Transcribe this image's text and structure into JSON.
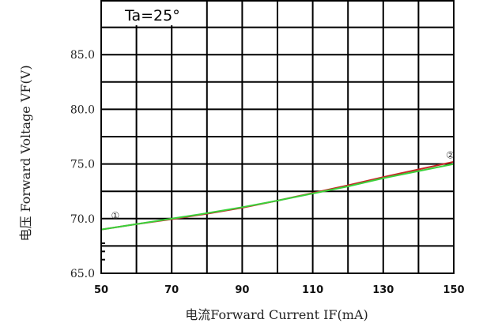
{
  "chart_data": {
    "type": "line",
    "annotation": "Ta=25°",
    "xlabel": "电流Forward Current IF(mA)",
    "ylabel": "电压 Forward Voltage VF(V)",
    "xlim": [
      50,
      150
    ],
    "ylim": [
      65.0,
      90.0
    ],
    "x_ticks": [
      50,
      70,
      90,
      110,
      130,
      150
    ],
    "x_tick_labels": [
      "50",
      "70",
      "90",
      "110",
      "130",
      "150"
    ],
    "y_ticks": [
      65.0,
      70.0,
      75.0,
      80.0,
      85.0
    ],
    "y_tick_labels": [
      "65.0",
      "70.0",
      "75.0",
      "80.0",
      "85.0"
    ],
    "grid": true,
    "point_markers": [
      {
        "label": "①",
        "x": 52,
        "y": 70.0
      },
      {
        "label": "②",
        "x": 147,
        "y": 75.5
      }
    ],
    "series": [
      {
        "color": "#c62828",
        "x": [
          50,
          60,
          70,
          80,
          90,
          100,
          110,
          120,
          130,
          140,
          150
        ],
        "y": [
          69.0,
          69.5,
          69.95,
          70.45,
          71.0,
          71.65,
          72.35,
          73.05,
          73.8,
          74.5,
          75.2
        ]
      },
      {
        "color": "#3ad13a",
        "x": [
          50,
          60,
          70,
          80,
          90,
          100,
          110,
          120,
          130,
          140,
          150
        ],
        "y": [
          69.0,
          69.5,
          70.0,
          70.5,
          71.05,
          71.65,
          72.3,
          72.95,
          73.7,
          74.35,
          75.0
        ]
      }
    ]
  }
}
